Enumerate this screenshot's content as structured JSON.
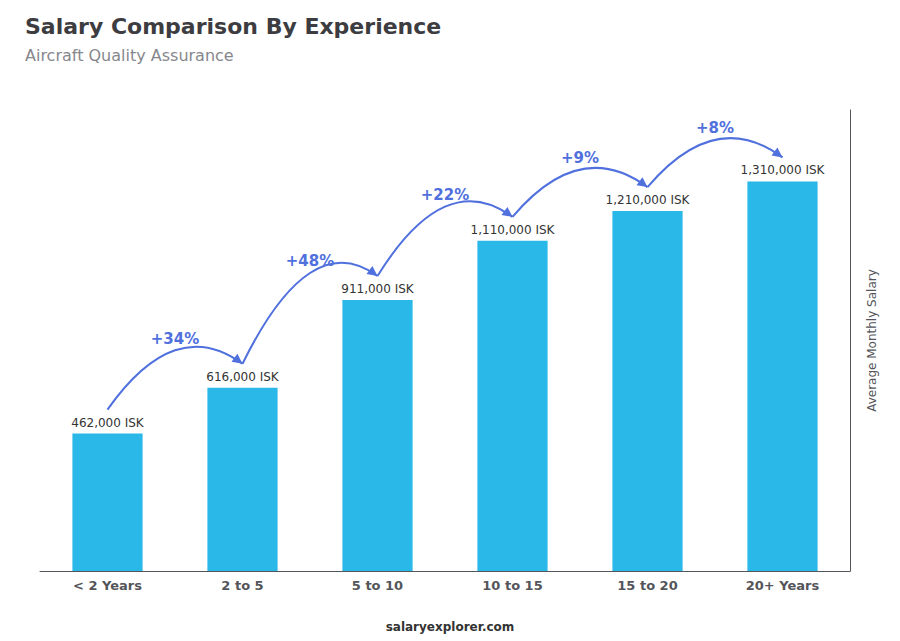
{
  "chart_data": {
    "type": "bar",
    "title": "Salary Comparison By Experience",
    "subtitle": "Aircraft Quality Assurance",
    "ylabel": "Average Monthly Salary",
    "categories": [
      "< 2 Years",
      "2 to 5",
      "5 to 10",
      "10 to 15",
      "15 to 20",
      "20+ Years"
    ],
    "values": [
      462000,
      616000,
      911000,
      1110000,
      1210000,
      1310000
    ],
    "value_labels": [
      "462,000 ISK",
      "616,000 ISK",
      "911,000 ISK",
      "1,110,000 ISK",
      "1,210,000 ISK",
      "1,310,000 ISK"
    ],
    "data_labels": true,
    "color": "#29B8E8",
    "ylim": [
      0,
      1550000
    ],
    "grid": false,
    "tick_labels": "x",
    "annotations": [
      "+34%",
      "+48%",
      "+22%",
      "+9%",
      "+8%"
    ],
    "footer": "salaryexplorer.com"
  }
}
